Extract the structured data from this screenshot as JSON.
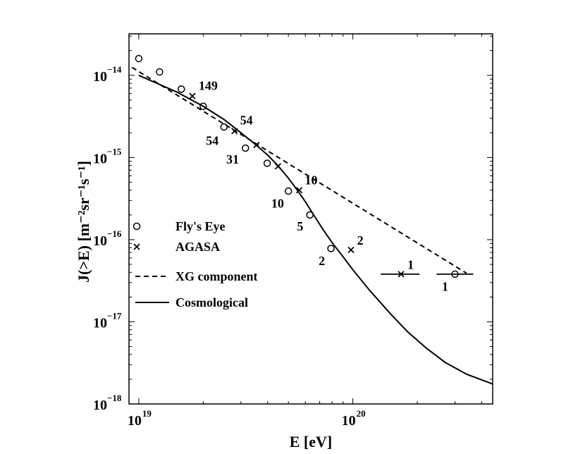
{
  "chart_data": {
    "type": "scatter",
    "xlabel": "E  [eV]",
    "ylabel": "J(>E)  [m⁻²sr⁻¹s⁻¹]",
    "x_scale": "log",
    "y_scale": "log",
    "xlim": [
      9e+18,
      4.5e+20
    ],
    "ylim": [
      1e-18,
      3.2e-14
    ],
    "grid": false,
    "legend_position": "left-lower",
    "x_ticks": [
      {
        "value": 1e+19,
        "base": "10",
        "exp": "19"
      },
      {
        "value": 1e+20,
        "base": "10",
        "exp": "20"
      }
    ],
    "y_ticks": [
      {
        "value": 1e-14,
        "base": "10",
        "exp": "−14"
      },
      {
        "value": 1e-15,
        "base": "10",
        "exp": "−15"
      },
      {
        "value": 1e-16,
        "base": "10",
        "exp": "−16"
      },
      {
        "value": 1e-17,
        "base": "10",
        "exp": "−17"
      },
      {
        "value": 1e-18,
        "base": "10",
        "exp": "−18"
      }
    ],
    "series": [
      {
        "name": "Fly's Eye",
        "marker": "circle",
        "points": [
          {
            "x": 1e+19,
            "y": 1.6e-14
          },
          {
            "x": 1.25e+19,
            "y": 1.1e-14
          },
          {
            "x": 1.58e+19,
            "y": 6.8e-15
          },
          {
            "x": 2e+19,
            "y": 4.2e-15
          },
          {
            "x": 2.5e+19,
            "y": 2.35e-15
          },
          {
            "x": 3.15e+19,
            "y": 1.3e-15
          },
          {
            "x": 3.98e+19,
            "y": 8.5e-16
          },
          {
            "x": 5e+19,
            "y": 3.9e-16
          },
          {
            "x": 6.3e+19,
            "y": 2e-16
          },
          {
            "x": 7.9e+19,
            "y": 7.8e-17
          },
          {
            "x": 3e+20,
            "y": 3.8e-17
          }
        ]
      },
      {
        "name": "AGASA",
        "marker": "x",
        "points": [
          {
            "x": 1.78e+19,
            "y": 5.6e-15
          },
          {
            "x": 2.8e+19,
            "y": 2.1e-15
          },
          {
            "x": 3.55e+19,
            "y": 1.42e-15
          },
          {
            "x": 4.47e+19,
            "y": 7.8e-16
          },
          {
            "x": 5.62e+19,
            "y": 4e-16
          },
          {
            "x": 9.8e+19,
            "y": 7.5e-17
          },
          {
            "x": 1.68e+20,
            "y": 3.8e-17
          }
        ],
        "error_bars_x": [
          {
            "x_low": 1.35e+20,
            "x_high": 2.05e+20,
            "y": 3.8e-17
          }
        ]
      },
      {
        "name": "XG component",
        "style": "dashed",
        "line": [
          {
            "x": 9.3e+18,
            "y": 1.25e-14
          },
          {
            "x": 3.4e+20,
            "y": 3.9e-17
          }
        ]
      },
      {
        "name": "Cosmological",
        "style": "solid",
        "line": [
          {
            "x": 1e+19,
            "y": 1e-14
          },
          {
            "x": 1.5e+19,
            "y": 6.3e-15
          },
          {
            "x": 2e+19,
            "y": 4.2e-15
          },
          {
            "x": 2.5e+19,
            "y": 2.9e-15
          },
          {
            "x": 3e+19,
            "y": 2e-15
          },
          {
            "x": 3.5e+19,
            "y": 1.45e-15
          },
          {
            "x": 4e+19,
            "y": 1.07e-15
          },
          {
            "x": 4.5e+19,
            "y": 7.8e-16
          },
          {
            "x": 5e+19,
            "y": 5.6e-16
          },
          {
            "x": 5.5e+19,
            "y": 4e-16
          },
          {
            "x": 6e+19,
            "y": 2.9e-16
          },
          {
            "x": 6.6e+19,
            "y": 1.95e-16
          },
          {
            "x": 7.3e+19,
            "y": 1.3e-16
          },
          {
            "x": 8e+19,
            "y": 9.2e-17
          },
          {
            "x": 9e+19,
            "y": 6.2e-17
          },
          {
            "x": 1e+20,
            "y": 4.3e-17
          },
          {
            "x": 1.2e+20,
            "y": 2.4e-17
          },
          {
            "x": 1.5e+20,
            "y": 1.25e-17
          },
          {
            "x": 1.8e+20,
            "y": 7.6e-18
          },
          {
            "x": 2.2e+20,
            "y": 4.8e-18
          },
          {
            "x": 2.7e+20,
            "y": 3.2e-18
          },
          {
            "x": 3.4e+20,
            "y": 2.3e-18
          },
          {
            "x": 4.5e+20,
            "y": 1.75e-18
          }
        ]
      }
    ],
    "annotations": [
      {
        "text": "149",
        "x": 1.82e+19,
        "y": 5.9e-15,
        "anchor": "start"
      },
      {
        "text": "54",
        "x": 2.84e+19,
        "y": 2.25e-15,
        "anchor": "start"
      },
      {
        "text": "54",
        "x": 2.45e+19,
        "y": 2.2e-15,
        "anchor": "end-below"
      },
      {
        "text": "31",
        "x": 3.05e+19,
        "y": 1.3e-15,
        "anchor": "end-below"
      },
      {
        "text": "10",
        "x": 5.7e+19,
        "y": 4.2e-16,
        "anchor": "start"
      },
      {
        "text": "10",
        "x": 4.95e+19,
        "y": 3.8e-16,
        "anchor": "end-below"
      },
      {
        "text": "5",
        "x": 6.1e+19,
        "y": 2e-16,
        "anchor": "end-below"
      },
      {
        "text": "2",
        "x": 7.7e+19,
        "y": 7.6e-17,
        "anchor": "end-below"
      },
      {
        "text": "2",
        "x": 1e+20,
        "y": 7.7e-17,
        "anchor": "start"
      },
      {
        "text": "1",
        "x": 1.72e+20,
        "y": 3.9e-17,
        "anchor": "start"
      },
      {
        "text": "1",
        "x": 2.9e+20,
        "y": 3.7e-17,
        "anchor": "end-below"
      }
    ]
  }
}
